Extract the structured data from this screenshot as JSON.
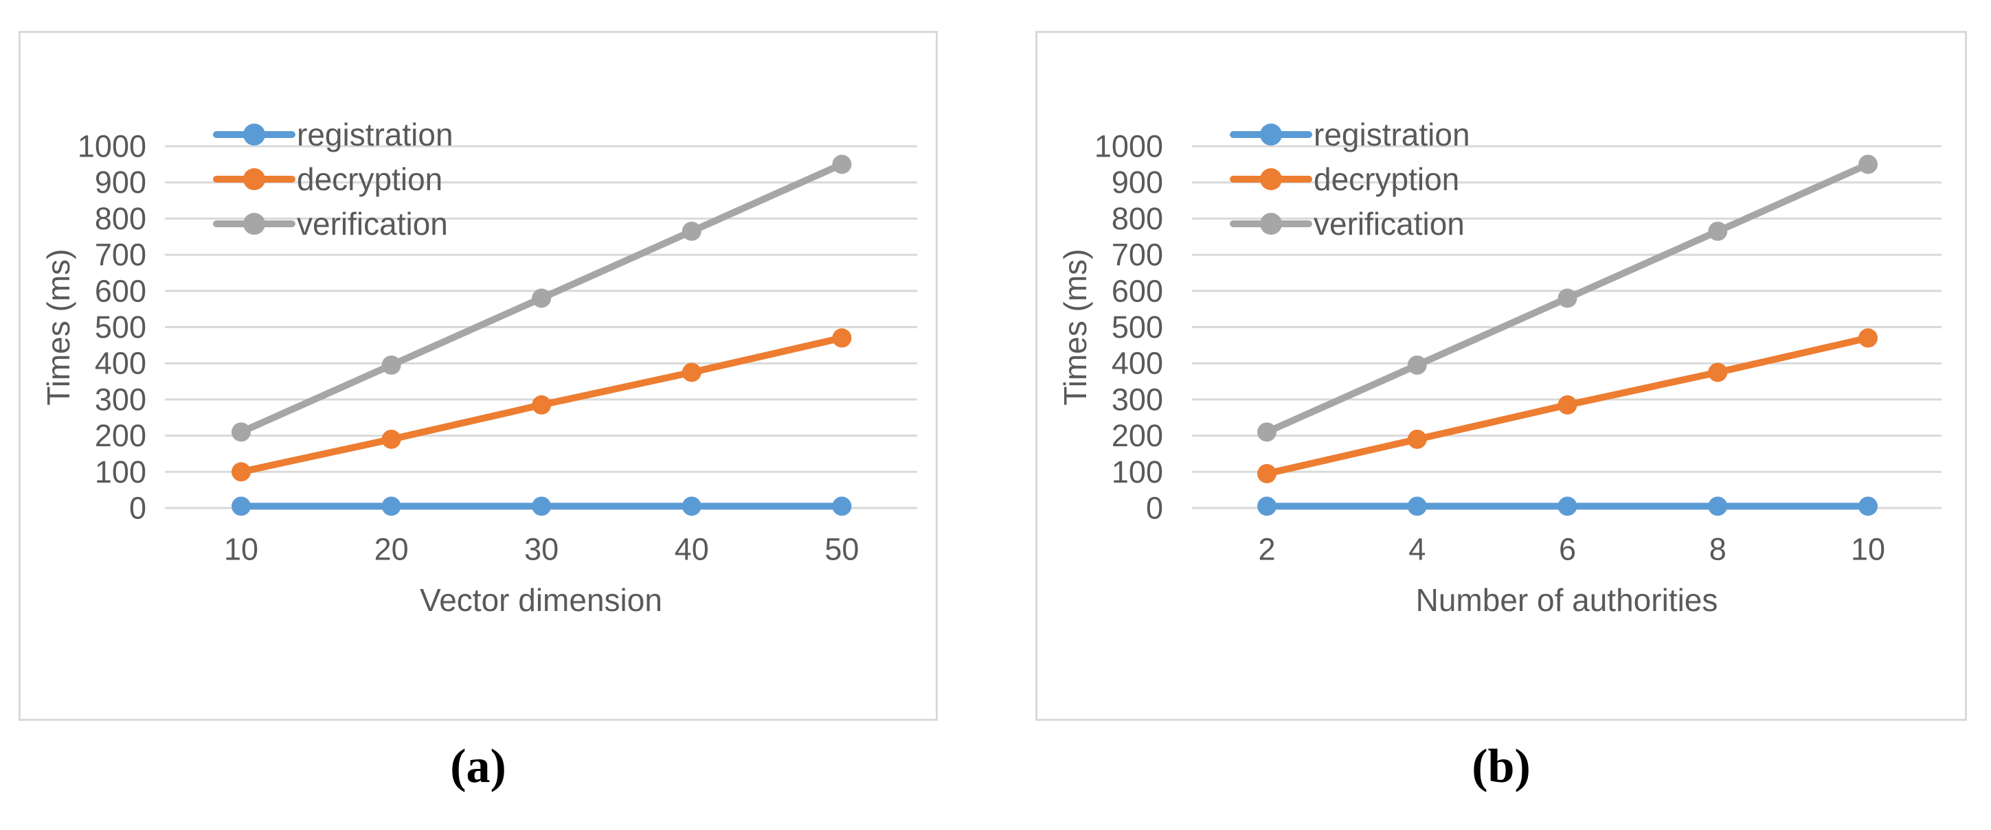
{
  "figure": {
    "captions": [
      "(a)",
      "(b)"
    ]
  },
  "colors": {
    "gridline": "#d9d9d9",
    "panel_border": "#d9d9d9",
    "text": "#595959",
    "caption": "#000000",
    "registration": "#5B9BD5",
    "decryption": "#ED7D31",
    "verification": "#A6A6A6"
  },
  "chart_data": [
    {
      "type": "line",
      "title": "",
      "categories": [
        "10",
        "20",
        "30",
        "40",
        "50"
      ],
      "xlabel": "Vector dimension",
      "ylabel": "Times (ms)",
      "ylim": [
        0,
        1000
      ],
      "ytick_step": 100,
      "ytick_labels": [
        "0",
        "100",
        "200",
        "300",
        "400",
        "500",
        "600",
        "700",
        "800",
        "900",
        "1000"
      ],
      "grid": true,
      "legend_position": "top-left",
      "legend_entries": [
        "registration",
        "decryption",
        "verification"
      ],
      "series": [
        {
          "name": "registration",
          "color": "#5B9BD5",
          "values": [
            5,
            5,
            5,
            5,
            5
          ]
        },
        {
          "name": "decryption",
          "color": "#ED7D31",
          "values": [
            100,
            190,
            285,
            375,
            470
          ]
        },
        {
          "name": "verification",
          "color": "#A6A6A6",
          "values": [
            210,
            395,
            580,
            765,
            950
          ]
        }
      ]
    },
    {
      "type": "line",
      "title": "",
      "categories": [
        "2",
        "4",
        "6",
        "8",
        "10"
      ],
      "xlabel": "Number of authorities",
      "ylabel": "Times (ms)",
      "ylim": [
        0,
        1000
      ],
      "ytick_step": 100,
      "ytick_labels": [
        "0",
        "100",
        "200",
        "300",
        "400",
        "500",
        "600",
        "700",
        "800",
        "900",
        "1000"
      ],
      "grid": true,
      "legend_position": "top-left",
      "legend_entries": [
        "registration",
        "decryption",
        "verification"
      ],
      "series": [
        {
          "name": "registration",
          "color": "#5B9BD5",
          "values": [
            5,
            5,
            5,
            5,
            5
          ]
        },
        {
          "name": "decryption",
          "color": "#ED7D31",
          "values": [
            95,
            190,
            285,
            375,
            470
          ]
        },
        {
          "name": "verification",
          "color": "#A6A6A6",
          "values": [
            210,
            395,
            580,
            765,
            950
          ]
        }
      ]
    }
  ]
}
